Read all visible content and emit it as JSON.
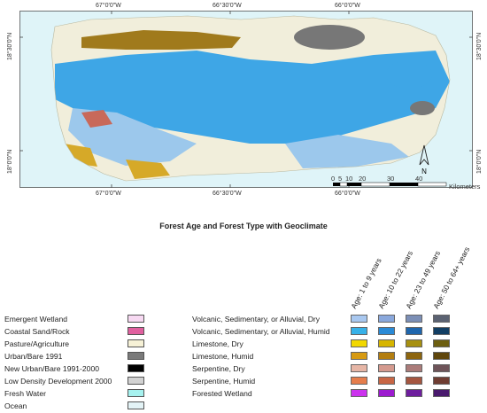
{
  "map": {
    "top_longitudes": [
      "67°0'0\"W",
      "66°30'0\"W",
      "66°0'0\"W"
    ],
    "bottom_longitudes": [
      "67°0'0\"W",
      "66°30'0\"W",
      "66°0'0\"W"
    ],
    "left_latitudes": [
      "18°30'0\"N",
      "18°0'0\"N"
    ],
    "right_latitudes": [
      "18°30'0\"N",
      "18°0'0\"N"
    ],
    "north_arrow_label": "N",
    "scale_bar": {
      "ticks": [
        "0",
        "5",
        "10",
        "20",
        "30",
        "40"
      ],
      "unit": "Kilometers"
    },
    "colors": {
      "ocean": "#dff4f8",
      "land_base": "#f1eedb",
      "humid_volcanic": "#3ea6e6",
      "dry_volcanic": "#9cc8ec",
      "limestone_dry": "#d6a928",
      "limestone_humid": "#a07a1c",
      "urban": "#777777",
      "forested_wetland": "#6a2fa0"
    }
  },
  "title": "Forest Age and Forest Type with Geoclimate",
  "land_cover_legend": [
    {
      "label": "Emergent Wetland",
      "color": "#f7d9f2"
    },
    {
      "label": "Coastal Sand/Rock",
      "color": "#e0609f"
    },
    {
      "label": "Pasture/Agriculture",
      "color": "#f6f1d6"
    },
    {
      "label": "Urban/Bare 1991",
      "color": "#7a7a7a"
    },
    {
      "label": "New Urban/Bare 1991-2000",
      "color": "#000000"
    },
    {
      "label": "Low Density Development 2000",
      "color": "#d2d2d2"
    },
    {
      "label": "Fresh Water",
      "color": "#a6f2ef"
    },
    {
      "label": "Ocean",
      "color": "#e3f3f6"
    }
  ],
  "age_classes": [
    "Age:  1 to 9 years",
    "Age:  10 to 22 years",
    "Age:  23 to 49 years",
    "Age:  50 to 64+ years"
  ],
  "forest_types": [
    {
      "label": "Volcanic, Sedimentary, or Alluvial, Dry",
      "colors": [
        "#a9c8f0",
        "#8aa8dc",
        "#7c8fb6",
        "#5b6272"
      ]
    },
    {
      "label": "Volcanic, Sedimentary, or Alluvial, Humid",
      "colors": [
        "#37b1e8",
        "#2a8ad6",
        "#1f66ad",
        "#123e63"
      ]
    },
    {
      "label": "Limestone, Dry",
      "colors": [
        "#f2d800",
        "#d6b500",
        "#a79010",
        "#6c5e10"
      ]
    },
    {
      "label": "Limestone, Humid",
      "colors": [
        "#d79a12",
        "#b37e10",
        "#8d650e",
        "#5f460c"
      ]
    },
    {
      "label": "Serpentine, Dry",
      "colors": [
        "#e6b6a6",
        "#d49a8f",
        "#ab7c7a",
        "#6e5459"
      ]
    },
    {
      "label": "Serpentine, Humid",
      "colors": [
        "#e57d4c",
        "#c86645",
        "#a55640",
        "#6f3d32"
      ]
    },
    {
      "label": "Forested Wetland",
      "colors": [
        "#cc33ee",
        "#9d1bd0",
        "#6e1e9e",
        "#4a1a6e"
      ]
    }
  ]
}
